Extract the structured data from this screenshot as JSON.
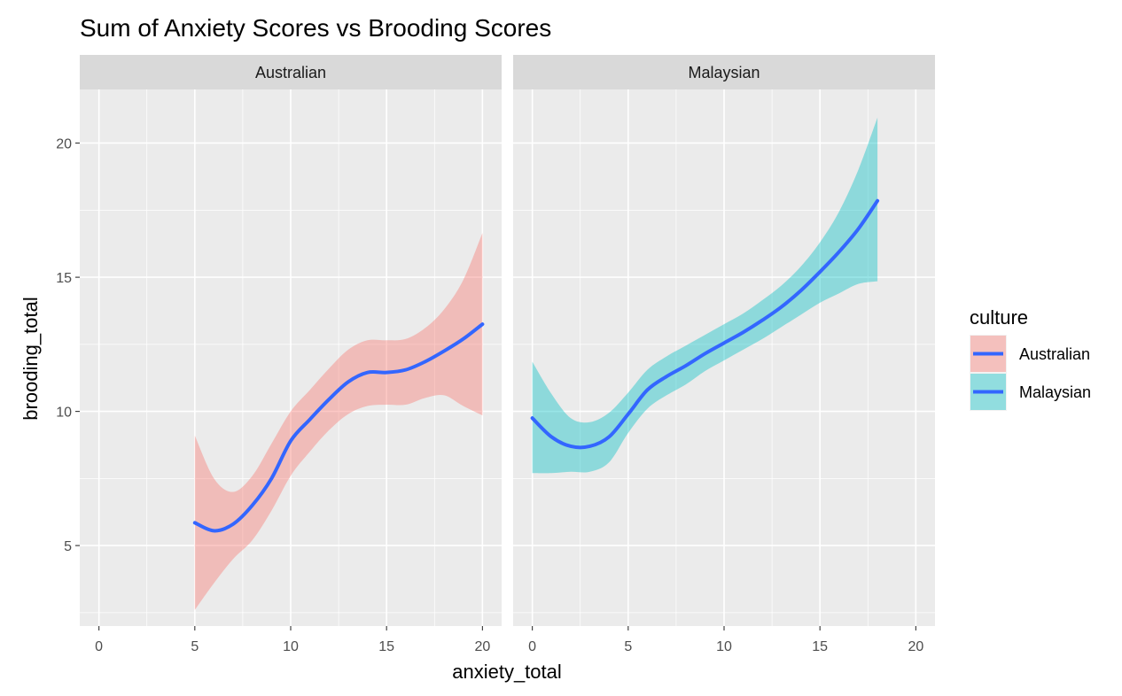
{
  "chart_data": {
    "type": "line",
    "title": "Sum of Anxiety Scores vs Brooding Scores",
    "xlabel": "anxiety_total",
    "ylabel": "brooding_total",
    "xlim": [
      -1,
      21
    ],
    "ylim": [
      2,
      22
    ],
    "x_ticks": [
      0,
      5,
      10,
      15,
      20
    ],
    "y_ticks": [
      5,
      10,
      15,
      20
    ],
    "grid": true,
    "legend": {
      "title": "culture",
      "position": "right",
      "entries": [
        {
          "label": "Australian",
          "fill": "#F8766D"
        },
        {
          "label": "Malaysian",
          "fill": "#00BFC4"
        }
      ]
    },
    "line_color": "#3366FF",
    "facets": [
      {
        "name": "Australian",
        "ribbon_color": "#F8766D",
        "x": [
          5,
          6,
          7,
          8,
          9,
          10,
          11,
          12,
          13,
          14,
          15,
          16,
          17,
          18,
          19,
          20
        ],
        "y": [
          5.85,
          5.55,
          5.8,
          6.5,
          7.5,
          8.9,
          9.7,
          10.45,
          11.1,
          11.45,
          11.45,
          11.55,
          11.85,
          12.25,
          12.7,
          13.25
        ],
        "lower": [
          2.6,
          3.6,
          4.5,
          5.2,
          6.3,
          7.6,
          8.5,
          9.3,
          9.9,
          10.2,
          10.25,
          10.25,
          10.5,
          10.6,
          10.2,
          9.85
        ],
        "upper": [
          9.1,
          7.5,
          7.0,
          7.6,
          8.8,
          10.0,
          10.8,
          11.6,
          12.3,
          12.65,
          12.65,
          12.7,
          13.1,
          13.8,
          14.9,
          16.65
        ]
      },
      {
        "name": "Malaysian",
        "ribbon_color": "#00BFC4",
        "x": [
          0,
          1,
          2,
          3,
          4,
          5,
          6,
          7,
          8,
          9,
          10,
          11,
          12,
          13,
          14,
          15,
          16,
          17,
          18
        ],
        "y": [
          9.75,
          9.05,
          8.7,
          8.7,
          9.05,
          9.9,
          10.8,
          11.3,
          11.7,
          12.15,
          12.55,
          12.95,
          13.4,
          13.9,
          14.5,
          15.2,
          15.95,
          16.8,
          17.85
        ],
        "lower": [
          7.7,
          7.7,
          7.75,
          7.75,
          8.1,
          9.2,
          10.1,
          10.6,
          11.0,
          11.5,
          11.9,
          12.3,
          12.7,
          13.15,
          13.6,
          14.05,
          14.4,
          14.75,
          14.85
        ],
        "upper": [
          11.85,
          10.65,
          9.75,
          9.6,
          9.95,
          10.7,
          11.55,
          12.05,
          12.45,
          12.85,
          13.25,
          13.65,
          14.15,
          14.7,
          15.4,
          16.3,
          17.45,
          19.0,
          20.95
        ]
      }
    ]
  }
}
